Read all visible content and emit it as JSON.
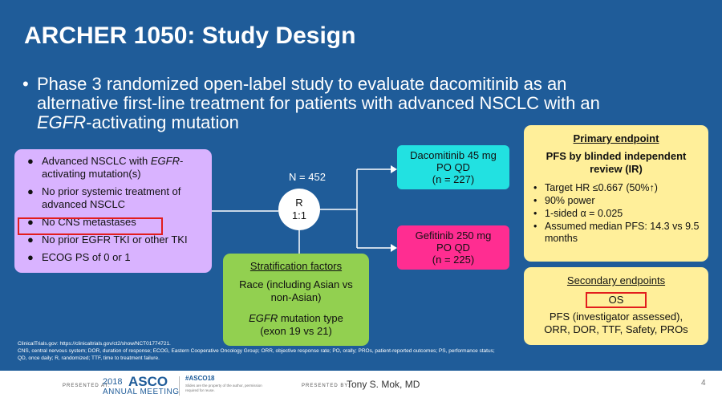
{
  "title": "ARCHER 1050: Study Design",
  "main_bullet": {
    "bullet": "•",
    "line1": "Phase 3 randomized open-label study to evaluate dacomitinib as an",
    "line2": "alternative first-line treatment for patients with advanced NSCLC with an",
    "line3_em": "EGFR",
    "line3_rest": "-activating mutation"
  },
  "eligibility": [
    {
      "pre": "Advanced NSCLC with ",
      "em": "EGFR",
      "post": "-activating mutation(s)"
    },
    {
      "pre": "No prior systemic treatment of advanced NSCLC"
    },
    {
      "pre": "No CNS metastases"
    },
    {
      "pre": "No prior EGFR TKI or other TKI"
    },
    {
      "pre": "ECOG PS of 0 or 1"
    }
  ],
  "bullet_char": "●",
  "randomization": {
    "n_label": "N = 452",
    "r": "R",
    "ratio": "1:1"
  },
  "arms": [
    {
      "line1": "Dacomitinib 45 mg",
      "line2": "PO QD",
      "line3": "(n = 227)"
    },
    {
      "line1": "Gefitinib 250 mg",
      "line2": "PO QD",
      "line3": "(n = 225)"
    }
  ],
  "stratification": {
    "heading": "Stratification factors",
    "race1": "Race (including Asian vs",
    "race2": "non-Asian)",
    "egfr_em": "EGFR",
    "egfr_rest": " mutation type",
    "exon": "(exon 19 vs 21)"
  },
  "primary": {
    "heading": "Primary endpoint",
    "sub1": "PFS by blinded independent",
    "sub2": "review (IR)",
    "bullet": "•",
    "items": [
      "Target HR ≤0.667 (50%↑)",
      "90% power",
      "1-sided α = 0.025",
      "Assumed median PFS: 14.3 vs 9.5 months"
    ]
  },
  "secondary": {
    "heading": "Secondary endpoints",
    "os": "OS",
    "line1": "PFS (investigator assessed),",
    "line2": "ORR, DOR, TTF, Safety, PROs"
  },
  "footnote": {
    "line1": "ClinicalTrials.gov: https://clinicaltrials.gov/ct2/show/NCT01774721.",
    "line2": "CNS, central nervous system; DOR, duration of response; ECOG, Eastern Cooperative Oncology Group; ORR, objective response rate; PO, orally; PROs, patient-reported outcomes; PS, performance status;",
    "line3": "QD, once daily; R, randomized; TTF, time to treatment failure."
  },
  "footer": {
    "presented_at": "PRESENTED AT:",
    "asco_year": "2018",
    "asco_name": "ASCO",
    "asco_meeting": "ANNUAL MEETING",
    "hashtag": "#ASCO18",
    "fineprint": "Slides are the property of the author, permission required for reuse.",
    "presented_by": "PRESENTED BY:",
    "presenter": "Tony S. Mok, MD",
    "page": "4"
  },
  "colors": {
    "background": "#1f5c99",
    "eligibility": "#d9b3ff",
    "dacomitinib": "#22e1e1",
    "gefitinib": "#ff2d91",
    "stratification": "#92d050",
    "endpoints": "#ffef9a",
    "highlight": "#e21d1d"
  }
}
